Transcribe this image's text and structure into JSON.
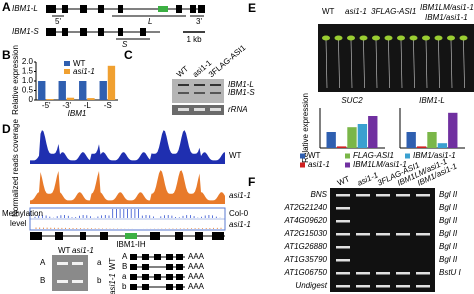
{
  "chart_data": [
    {
      "type": "bar",
      "y_label": "Relative expression",
      "x_label": "IBM1",
      "categories": [
        "-5'",
        "-3'",
        "-L",
        "-S"
      ],
      "series": [
        {
          "name": "WT",
          "color": "#2f5fb0",
          "values": [
            1,
            1,
            1,
            1
          ]
        },
        {
          "name": "asi1-1",
          "color": "#f0a030",
          "values": [
            0.05,
            0.12,
            0.1,
            1.8
          ]
        }
      ],
      "ylim": [
        0,
        2
      ],
      "yticks": [
        0,
        0.5,
        {
          "value": 1,
          "label": "1.0"
        },
        1.5,
        {
          "value": 2,
          "label": "2.0"
        }
      ]
    },
    {
      "type": "bar",
      "title": "SUC2",
      "categories": [
        null
      ],
      "series": [
        {
          "name": "WT",
          "color": "#2f5fb0",
          "values": [
            1
          ]
        },
        {
          "name": "asi1-1",
          "color": "#d02020",
          "values": [
            0.1
          ]
        },
        {
          "name": "FLAG-ASI1",
          "color": "#7ab648",
          "values": [
            1.3
          ]
        },
        {
          "name": "IBM1/asi1-1",
          "color": "#3aa0d0",
          "values": [
            1.5
          ]
        },
        {
          "name": "IBM1LM/asi1-1",
          "color": "#7030a0",
          "values": [
            2
          ]
        }
      ],
      "ylim": [
        0,
        2.5
      ]
    },
    {
      "type": "bar",
      "title": "IBM1-L",
      "categories": [
        null
      ],
      "series": [
        {
          "name": "WT",
          "color": "#2f5fb0",
          "values": [
            1
          ]
        },
        {
          "name": "asi1-1",
          "color": "#d02020",
          "values": [
            0.1
          ]
        },
        {
          "name": "FLAG-ASI1",
          "color": "#7ab648",
          "values": [
            1
          ]
        },
        {
          "name": "IBM1/asi1-1",
          "color": "#3aa0d0",
          "values": [
            0.3
          ]
        },
        {
          "name": "IBM1LM/asi1-1",
          "color": "#7030a0",
          "values": [
            2.2
          ]
        }
      ],
      "ylim": [
        0,
        2.5
      ]
    }
  ],
  "panels": {
    "A": {
      "label": "A",
      "genes": [
        "IBM1-L",
        "IBM1-S"
      ],
      "primers": [
        "5'",
        "L",
        "3'",
        "S"
      ],
      "scale": "1 kb"
    },
    "B": {
      "label": "B"
    },
    "C": {
      "label": "C",
      "lanes": [
        "WT",
        "asi1-1",
        "3FLAG-ASI1"
      ],
      "bands": [
        "IBM1-L",
        "IBM1-S",
        "rRNA"
      ]
    },
    "D": {
      "label": "D",
      "y_label": "Normalized reads coverage",
      "tracks": [
        "WT",
        "asi1-1"
      ],
      "methylation": [
        "Methylation",
        "level"
      ],
      "samples": [
        "Col-0",
        "asi1-1"
      ],
      "gene": "IBM1-IH",
      "gel_lanes": [
        "WT",
        "asi1-1"
      ],
      "gel_left": [
        "A",
        "B"
      ],
      "gel_right": [
        "a",
        "b"
      ],
      "genotypes": [
        "WT",
        "asi1-1"
      ],
      "isoforms": [
        {
          "label": "A",
          "tail": "AAA"
        },
        {
          "label": "B",
          "tail": "AAA"
        },
        {
          "label": "a",
          "tail": "AAA"
        },
        {
          "label": "b",
          "tail": "AAA"
        }
      ]
    },
    "E": {
      "label": "E",
      "plants": [
        "WT",
        "asi1-1",
        "3FLAG-ASI1",
        "IBM1LM/asi1-1",
        "IBM1/asi1-1"
      ],
      "y_label": "Relative expression"
    },
    "F": {
      "label": "F",
      "columns": [
        "WT",
        "asi1-1",
        "3FLAG-ASI1",
        "IBM1LM/asi1-1",
        "IBM1/asi1-1"
      ],
      "rows": [
        {
          "gene": "BNS",
          "enzyme": "Bgl II"
        },
        {
          "gene": "AT2G21240",
          "enzyme": "Bgl II"
        },
        {
          "gene": "AT4G09620",
          "enzyme": "Bgl II"
        },
        {
          "gene": "AT2G15030",
          "enzyme": "Bgl II"
        },
        {
          "gene": "AT1G26880",
          "enzyme": "Bgl II"
        },
        {
          "gene": "AT1G35790",
          "enzyme": "Bgl II"
        },
        {
          "gene": "AT1G06750",
          "enzyme": "BstU I"
        },
        {
          "gene": "Undigest"
        }
      ]
    }
  }
}
